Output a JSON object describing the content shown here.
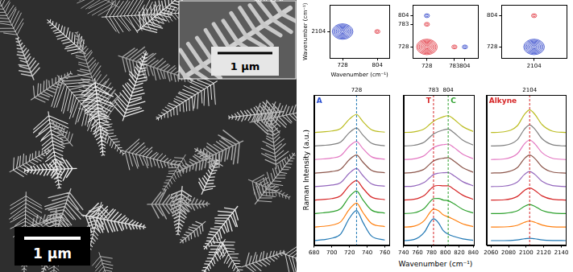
{
  "image": {
    "scale_bar": "1 µm",
    "inset_scale_bar": "1 µm"
  },
  "chart_data": [
    {
      "type": "contour",
      "xlabel": "Wavenumber (cm⁻¹)",
      "ylabel": "Wavenumber (cm⁻¹)",
      "xlim": [
        700,
        830
      ],
      "xticks": [
        728,
        804
      ],
      "ylim": [
        2080,
        2128
      ],
      "yticks": [
        2104
      ],
      "peaks": [
        {
          "x": 728,
          "y": 2104,
          "color": "#2a3fc8",
          "intensity": 1
        },
        {
          "x": 804,
          "y": 2104,
          "color": "#e0303a",
          "intensity": 0.25
        }
      ]
    },
    {
      "type": "contour",
      "xlim": [
        700,
        830
      ],
      "xticks": [
        728,
        783,
        804
      ],
      "ylim": [
        700,
        830
      ],
      "yticks": [
        728,
        783,
        804
      ],
      "peaks": [
        {
          "x": 728,
          "y": 728,
          "color": "#e0303a",
          "intensity": 1
        },
        {
          "x": 783,
          "y": 728,
          "color": "#e0303a",
          "intensity": 0.25
        },
        {
          "x": 728,
          "y": 783,
          "color": "#e0303a",
          "intensity": 0.25
        },
        {
          "x": 804,
          "y": 728,
          "color": "#2a3fc8",
          "intensity": 0.2
        },
        {
          "x": 728,
          "y": 804,
          "color": "#2a3fc8",
          "intensity": 0.2
        }
      ]
    },
    {
      "type": "contour",
      "xlim": [
        2080,
        2128
      ],
      "xticks": [
        2104
      ],
      "ylim": [
        700,
        830
      ],
      "yticks": [
        728,
        804
      ],
      "peaks": [
        {
          "x": 2104,
          "y": 728,
          "color": "#2a3fc8",
          "intensity": 1
        },
        {
          "x": 2104,
          "y": 804,
          "color": "#e0303a",
          "intensity": 0.25
        }
      ]
    },
    {
      "type": "line",
      "ylabel": "Raman Intensity (a.u.)",
      "tick_labels": "x",
      "panel_label": {
        "text": "A",
        "color": "#2a4fd0"
      },
      "xlim": [
        680,
        765
      ],
      "xticks": [
        680,
        700,
        720,
        740,
        760
      ],
      "ylim": [
        0,
        10
      ],
      "markers": [
        {
          "x": 728,
          "label": "728",
          "color": "#1f77b4"
        }
      ],
      "x": [
        680,
        690,
        700,
        710,
        720,
        728,
        735,
        745,
        760
      ],
      "series": [
        {
          "color": "#1f77b4",
          "values": [
            0.3,
            0.36,
            0.46,
            0.74,
            1.8,
            2.3,
            1.54,
            0.6,
            0.34
          ]
        },
        {
          "color": "#ff7f0e",
          "values": [
            1.2,
            1.25,
            1.33,
            1.55,
            2.4,
            2.8,
            2.19,
            1.44,
            1.23
          ]
        },
        {
          "color": "#2ca02c",
          "values": [
            2.1,
            2.15,
            2.22,
            2.43,
            3.23,
            3.6,
            3.03,
            2.33,
            2.13
          ]
        },
        {
          "color": "#d62728",
          "values": [
            3.0,
            3.04,
            3.1,
            3.29,
            3.98,
            4.3,
            3.81,
            3.2,
            3.03
          ]
        },
        {
          "color": "#9467bd",
          "values": [
            3.9,
            3.94,
            4.0,
            4.16,
            4.8,
            5.1,
            4.64,
            4.08,
            3.92
          ]
        },
        {
          "color": "#8c564b",
          "values": [
            4.8,
            4.84,
            4.9,
            5.06,
            5.7,
            6.0,
            5.54,
            4.98,
            4.82
          ]
        },
        {
          "color": "#e377c2",
          "values": [
            5.7,
            5.74,
            5.8,
            5.96,
            6.6,
            6.9,
            6.44,
            5.88,
            5.72
          ]
        },
        {
          "color": "#7f7f7f",
          "values": [
            6.6,
            6.64,
            6.7,
            6.86,
            7.5,
            7.8,
            7.34,
            6.78,
            6.62
          ]
        },
        {
          "color": "#bcbd22",
          "values": [
            7.5,
            7.54,
            7.6,
            7.76,
            8.4,
            8.7,
            8.24,
            7.68,
            7.52
          ]
        }
      ]
    },
    {
      "type": "line",
      "xlabel": "Wavenumber (cm⁻¹)",
      "tick_labels": "x",
      "xlim": [
        740,
        840
      ],
      "xticks": [
        740,
        760,
        780,
        800,
        820,
        840
      ],
      "ylim": [
        0,
        10
      ],
      "markers": [
        {
          "x": 783,
          "label": "783",
          "tag": "T",
          "color": "#d62728"
        },
        {
          "x": 804,
          "label": "804",
          "tag": "C",
          "color": "#2ca02c"
        }
      ],
      "x": [
        740,
        755,
        770,
        778,
        783,
        790,
        797,
        804,
        812,
        825,
        840
      ],
      "series": [
        {
          "color": "#1f77b4",
          "values": [
            0.3,
            0.37,
            0.87,
            1.51,
            1.75,
            1.49,
            0.96,
            0.73,
            0.58,
            0.41,
            0.32
          ]
        },
        {
          "color": "#ff7f0e",
          "values": [
            1.2,
            1.26,
            1.65,
            2.18,
            2.4,
            2.3,
            2.01,
            1.89,
            1.71,
            1.41,
            1.23
          ]
        },
        {
          "color": "#2ca02c",
          "values": [
            2.1,
            2.15,
            2.46,
            2.89,
            3.1,
            3.11,
            3.0,
            2.96,
            2.76,
            2.38,
            2.14
          ]
        },
        {
          "color": "#d62728",
          "values": [
            3.0,
            3.05,
            3.32,
            3.7,
            3.9,
            3.97,
            3.95,
            3.95,
            3.73,
            3.32,
            3.05
          ]
        },
        {
          "color": "#9467bd",
          "values": [
            3.9,
            3.94,
            4.18,
            4.51,
            4.7,
            4.79,
            4.82,
            4.84,
            4.63,
            4.22,
            3.95
          ]
        },
        {
          "color": "#8c564b",
          "values": [
            4.8,
            4.85,
            5.07,
            5.41,
            5.6,
            5.73,
            5.79,
            5.83,
            5.61,
            5.15,
            4.85
          ]
        },
        {
          "color": "#e377c2",
          "values": [
            5.7,
            5.75,
            5.97,
            6.31,
            6.5,
            6.63,
            6.69,
            6.73,
            6.51,
            6.05,
            5.75
          ]
        },
        {
          "color": "#7f7f7f",
          "values": [
            6.6,
            6.65,
            6.87,
            7.2,
            7.4,
            7.56,
            7.67,
            7.73,
            7.49,
            6.99,
            6.66
          ]
        },
        {
          "color": "#bcbd22",
          "values": [
            7.5,
            7.54,
            7.75,
            8.06,
            8.25,
            8.42,
            8.55,
            8.62,
            8.39,
            7.89,
            7.56
          ]
        }
      ]
    },
    {
      "type": "line",
      "tick_labels": "x",
      "panel_label": {
        "text": "Alkyne",
        "color": "#d62728"
      },
      "xlim": [
        2055,
        2145
      ],
      "xticks": [
        2060,
        2080,
        2100,
        2120,
        2140
      ],
      "ylim": [
        0,
        10
      ],
      "markers": [
        {
          "x": 2104,
          "label": "2104",
          "color": "#d62728"
        }
      ],
      "x": [
        2060,
        2075,
        2090,
        2098,
        2104,
        2110,
        2118,
        2130,
        2145
      ],
      "series": [
        {
          "color": "#1f77b4",
          "values": [
            0.3,
            0.3,
            0.35,
            0.42,
            0.45,
            0.42,
            0.35,
            0.31,
            0.3
          ]
        },
        {
          "color": "#ff7f0e",
          "values": [
            1.2,
            1.21,
            1.32,
            1.52,
            1.6,
            1.52,
            1.34,
            1.22,
            1.2
          ]
        },
        {
          "color": "#2ca02c",
          "values": [
            2.1,
            2.12,
            2.28,
            2.58,
            2.7,
            2.58,
            2.31,
            2.14,
            2.1
          ]
        },
        {
          "color": "#d62728",
          "values": [
            3.0,
            3.02,
            3.24,
            3.64,
            3.8,
            3.64,
            3.28,
            3.05,
            3.0
          ]
        },
        {
          "color": "#9467bd",
          "values": [
            3.9,
            3.93,
            4.2,
            4.7,
            4.9,
            4.7,
            4.25,
            3.96,
            3.9
          ]
        },
        {
          "color": "#8c564b",
          "values": [
            4.8,
            4.84,
            5.16,
            5.76,
            6.0,
            5.76,
            5.22,
            4.87,
            4.8
          ]
        },
        {
          "color": "#e377c2",
          "values": [
            5.7,
            5.74,
            6.09,
            6.74,
            7.0,
            6.74,
            6.16,
            5.78,
            5.7
          ]
        },
        {
          "color": "#7f7f7f",
          "values": [
            6.6,
            6.64,
            7.02,
            7.72,
            8.0,
            7.72,
            7.09,
            6.68,
            6.6
          ]
        },
        {
          "color": "#bcbd22",
          "values": [
            7.5,
            7.55,
            7.95,
            8.7,
            9.0,
            8.7,
            8.03,
            7.59,
            7.5
          ]
        }
      ]
    }
  ]
}
